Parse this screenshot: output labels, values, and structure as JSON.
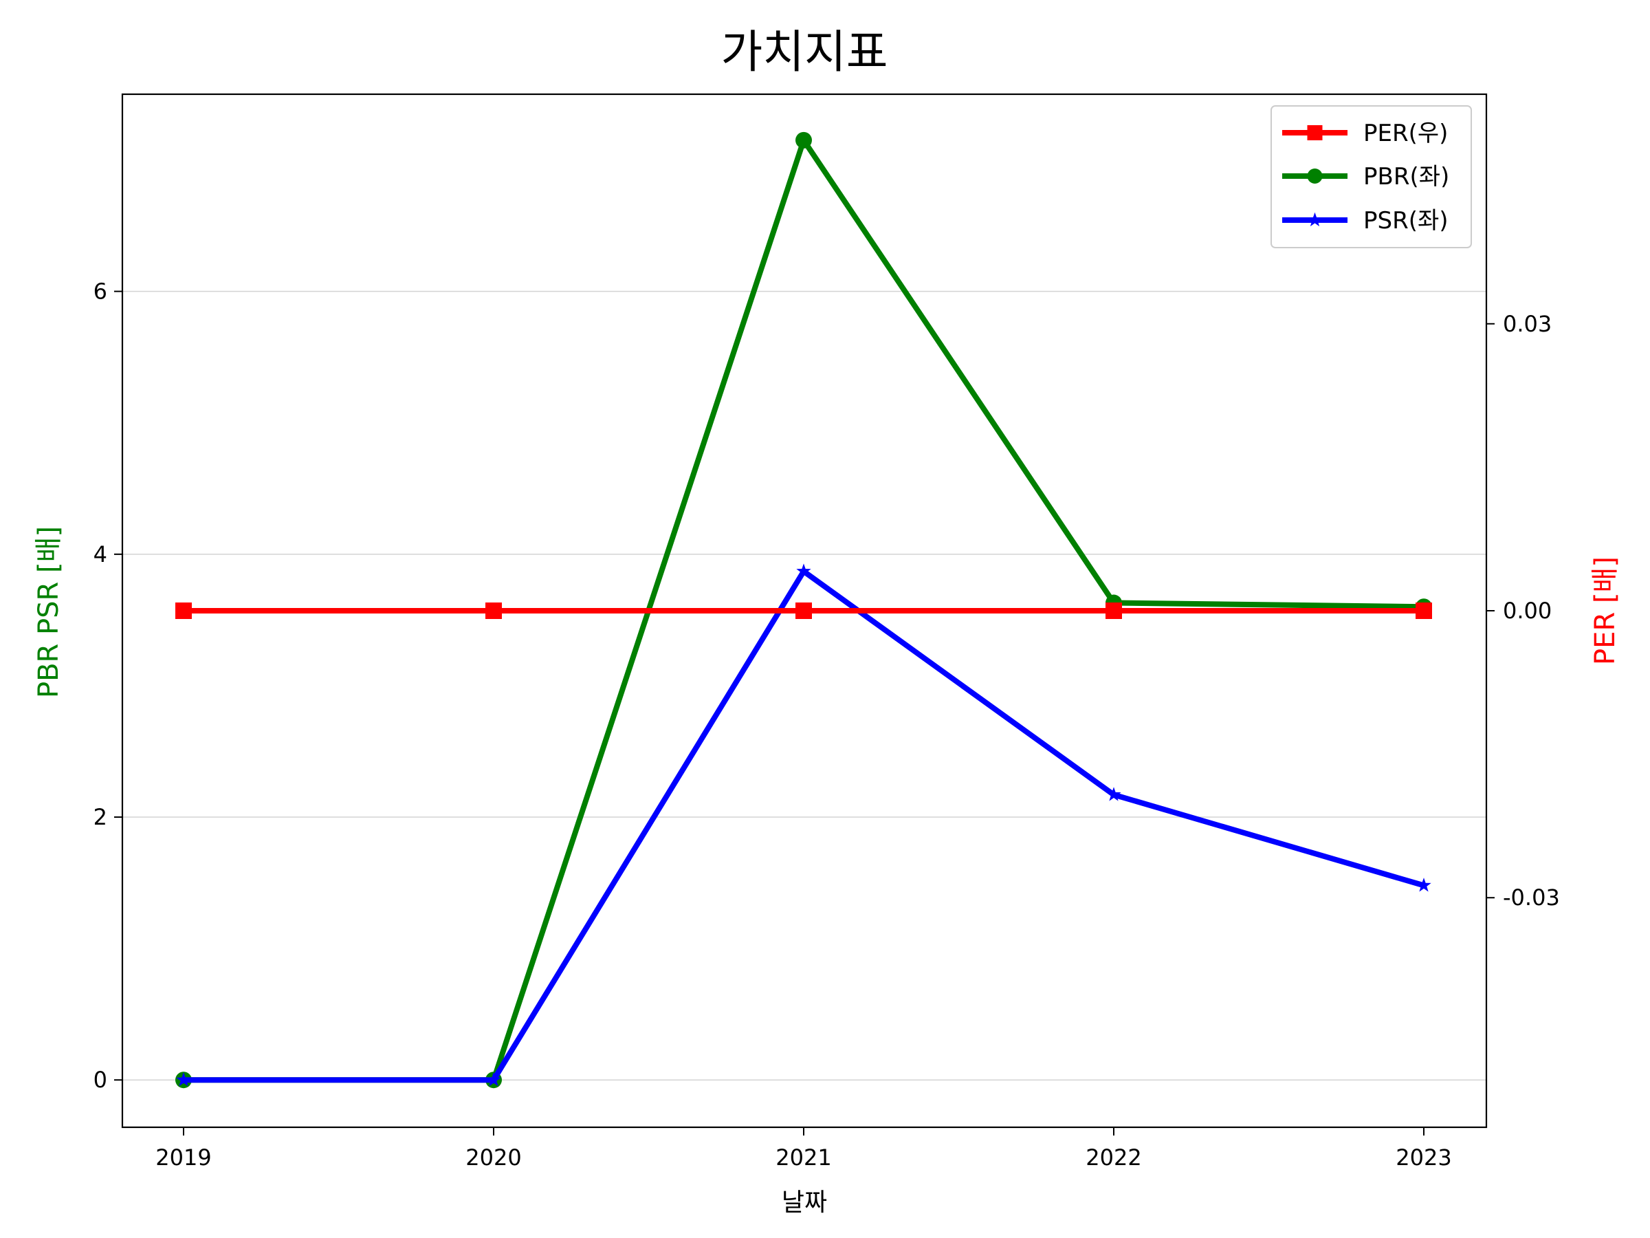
{
  "chart_data": {
    "type": "line",
    "title": "가치지표",
    "xlabel": "날짜",
    "ylabel_left": "PBR PSR [배]",
    "ylabel_right": "PER [배]",
    "categories": [
      "2019",
      "2020",
      "2021",
      "2022",
      "2023"
    ],
    "ylim_left": [
      -0.36,
      7.5
    ],
    "ylim_right": [
      -0.054,
      0.054
    ],
    "left_ticks": [
      0,
      2,
      4,
      6
    ],
    "left_tick_labels": [
      "0",
      "2",
      "4",
      "6"
    ],
    "right_ticks": [
      -0.03,
      0.0,
      0.03
    ],
    "right_tick_labels": [
      "-0.03",
      "0.00",
      "0.03"
    ],
    "grid": "horizontal (left axis)",
    "legend_position": "top-right",
    "series": [
      {
        "name": "PER(우)",
        "axis": "right",
        "marker": "square",
        "color": "#ff0000",
        "values": [
          0.0,
          0.0,
          0.0,
          0.0,
          0.0
        ]
      },
      {
        "name": "PBR(좌)",
        "axis": "left",
        "marker": "circle",
        "color": "#008000",
        "values": [
          0.0,
          0.0,
          7.15,
          3.63,
          3.6
        ]
      },
      {
        "name": "PSR(좌)",
        "axis": "left",
        "marker": "star",
        "color": "#0000ff",
        "values": [
          0.0,
          0.0,
          3.87,
          2.17,
          1.48
        ]
      }
    ]
  }
}
